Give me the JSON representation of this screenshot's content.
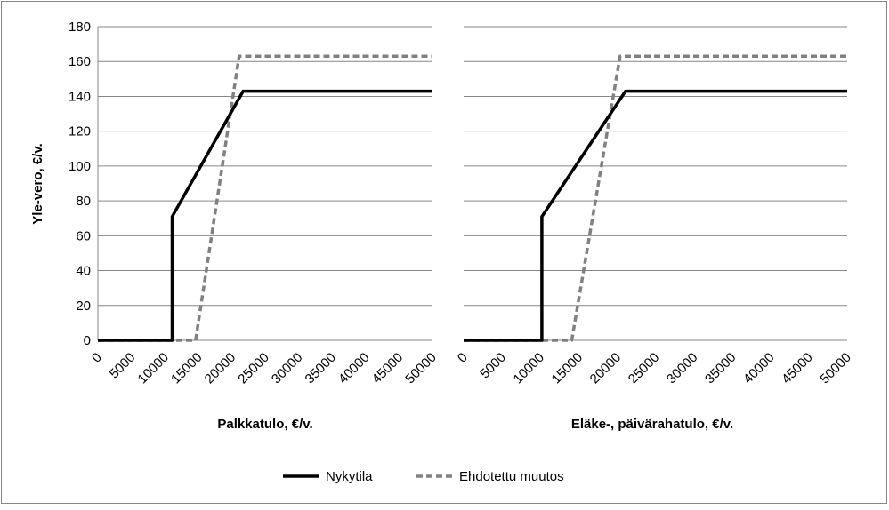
{
  "chart_data": [
    {
      "type": "line",
      "ylabel": "Yle-vero, €/v.",
      "xlabel": "Palkkatulo, €/v.",
      "xlim": [
        0,
        50000
      ],
      "ylim": [
        0,
        180
      ],
      "xticks": [
        0,
        5000,
        10000,
        15000,
        20000,
        25000,
        30000,
        35000,
        40000,
        45000,
        50000
      ],
      "yticks": [
        0,
        20,
        40,
        60,
        80,
        100,
        120,
        140,
        160,
        180
      ],
      "grid": true,
      "series": [
        {
          "name": "Nykytila",
          "color": "#000000",
          "style": "solid",
          "points": [
            [
              0,
              0
            ],
            [
              11100,
              0
            ],
            [
              11100,
              71
            ],
            [
              21700,
              143
            ],
            [
              50000,
              143
            ]
          ]
        },
        {
          "name": "Ehdotettu muutos",
          "color": "#808080",
          "style": "dashed",
          "points": [
            [
              0,
              0
            ],
            [
              14600,
              0
            ],
            [
              21100,
              163
            ],
            [
              50000,
              163
            ]
          ]
        }
      ]
    },
    {
      "type": "line",
      "xlabel": "Eläke-, päivärahatulo, €/v.",
      "xlim": [
        0,
        50000
      ],
      "ylim": [
        0,
        180
      ],
      "xticks": [
        0,
        5000,
        10000,
        15000,
        20000,
        25000,
        30000,
        35000,
        40000,
        45000,
        50000
      ],
      "grid": true,
      "series": [
        {
          "name": "Nykytila",
          "color": "#000000",
          "style": "solid",
          "points": [
            [
              0,
              0
            ],
            [
              10200,
              0
            ],
            [
              10200,
              71
            ],
            [
              21100,
              143
            ],
            [
              50000,
              143
            ]
          ]
        },
        {
          "name": "Ehdotettu muutos",
          "color": "#808080",
          "style": "dashed",
          "points": [
            [
              0,
              0
            ],
            [
              14100,
              0
            ],
            [
              20400,
              163
            ],
            [
              50000,
              163
            ]
          ]
        }
      ]
    }
  ],
  "legend": {
    "placement": "bottom",
    "items": [
      "Nykytila",
      "Ehdotettu muutos"
    ]
  }
}
